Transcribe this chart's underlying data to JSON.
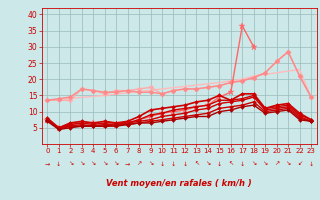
{
  "x": [
    0,
    1,
    2,
    3,
    4,
    5,
    6,
    7,
    8,
    9,
    10,
    11,
    12,
    13,
    14,
    15,
    16,
    17,
    18,
    19,
    20,
    21,
    22,
    23
  ],
  "series": [
    {
      "comment": "lightest pink - smooth linear trend line (no markers)",
      "y": [
        13.5,
        13.8,
        14.1,
        14.4,
        14.7,
        15.0,
        15.4,
        15.8,
        16.2,
        16.6,
        17.0,
        17.4,
        17.8,
        18.2,
        18.6,
        19.0,
        19.5,
        20.0,
        21.0,
        21.5,
        22.0,
        22.5,
        23.0,
        14.5
      ],
      "color": "#ffbbbb",
      "lw": 1.0,
      "marker": null,
      "ms": 0
    },
    {
      "comment": "light pink with diamond markers - irregular shape",
      "y": [
        13.5,
        13.5,
        13.5,
        17.0,
        16.5,
        15.5,
        16.5,
        16.5,
        17.0,
        17.5,
        15.5,
        16.5,
        17.0,
        17.0,
        17.5,
        18.0,
        19.0,
        19.5,
        20.5,
        22.0,
        25.5,
        28.5,
        21.0,
        14.5
      ],
      "color": "#ffaaaa",
      "lw": 1.0,
      "marker": "D",
      "ms": 2.5
    },
    {
      "comment": "medium pink with diamond markers",
      "y": [
        13.5,
        14.0,
        14.5,
        17.0,
        16.5,
        16.0,
        16.0,
        16.5,
        16.0,
        16.0,
        15.5,
        16.5,
        17.0,
        17.0,
        17.5,
        18.0,
        19.0,
        19.5,
        20.5,
        22.0,
        25.5,
        28.5,
        21.0,
        14.5
      ],
      "color": "#ff8888",
      "lw": 1.0,
      "marker": "D",
      "ms": 2.5
    },
    {
      "comment": "star marker line - peaks at 17=36.5",
      "y": [
        7.5,
        5.0,
        6.0,
        6.5,
        6.5,
        6.0,
        6.0,
        6.5,
        7.5,
        8.5,
        9.5,
        10.0,
        10.5,
        11.5,
        12.0,
        14.5,
        16.0,
        36.5,
        30.0,
        null,
        null,
        null,
        null,
        null
      ],
      "color": "#ff6666",
      "lw": 1.0,
      "marker": "*",
      "ms": 4.5
    },
    {
      "comment": "dark red top line with small markers",
      "y": [
        8.0,
        5.0,
        6.5,
        7.0,
        6.5,
        7.0,
        6.5,
        7.0,
        8.5,
        10.5,
        11.0,
        11.5,
        12.0,
        13.0,
        13.5,
        15.0,
        13.5,
        15.5,
        15.5,
        11.0,
        12.0,
        12.5,
        9.5,
        7.5
      ],
      "color": "#cc0000",
      "lw": 1.2,
      "marker": "D",
      "ms": 2.0
    },
    {
      "comment": "dark red line 2",
      "y": [
        7.5,
        5.0,
        6.0,
        6.5,
        6.0,
        6.5,
        6.5,
        6.5,
        7.5,
        9.0,
        9.5,
        10.5,
        11.0,
        11.5,
        12.0,
        13.5,
        13.5,
        14.0,
        15.0,
        11.0,
        11.5,
        12.0,
        9.0,
        7.5
      ],
      "color": "#cc0000",
      "lw": 1.0,
      "marker": "D",
      "ms": 2.0
    },
    {
      "comment": "dark red line 3",
      "y": [
        7.5,
        5.0,
        5.5,
        6.0,
        5.5,
        6.0,
        6.0,
        6.5,
        7.0,
        7.5,
        8.5,
        9.0,
        9.5,
        10.5,
        11.0,
        12.5,
        13.0,
        13.5,
        14.5,
        10.5,
        11.0,
        11.5,
        8.5,
        7.0
      ],
      "color": "#cc0000",
      "lw": 1.0,
      "marker": "D",
      "ms": 2.0
    },
    {
      "comment": "dark red line 4",
      "y": [
        7.5,
        4.5,
        5.5,
        5.5,
        5.5,
        5.5,
        6.0,
        6.0,
        6.5,
        7.0,
        7.5,
        8.0,
        8.5,
        9.0,
        9.5,
        11.0,
        11.5,
        12.0,
        13.0,
        10.0,
        10.5,
        11.0,
        8.0,
        7.0
      ],
      "color": "#cc0000",
      "lw": 1.0,
      "marker": "D",
      "ms": 2.0
    },
    {
      "comment": "dark red line 5 - lowest",
      "y": [
        7.0,
        4.5,
        5.0,
        5.5,
        5.5,
        5.5,
        5.5,
        6.0,
        6.5,
        6.5,
        7.0,
        7.5,
        8.0,
        8.5,
        8.5,
        10.0,
        10.5,
        11.5,
        12.0,
        9.5,
        10.0,
        10.5,
        7.5,
        7.0
      ],
      "color": "#aa0000",
      "lw": 1.0,
      "marker": "D",
      "ms": 2.0
    }
  ],
  "wind_arrows": [
    "→",
    "↓",
    "↘",
    "↘",
    "↘",
    "↘",
    "↘",
    "→",
    "↗",
    "↘",
    "↓",
    "↓",
    "↓",
    "↖",
    "↘",
    "↓",
    "↖",
    "↓",
    "↘",
    "↘",
    "↗",
    "↘",
    "↙",
    "↓"
  ],
  "xlabel": "Vent moyen/en rafales ( km/h )",
  "ylim": [
    0,
    42
  ],
  "xlim": [
    -0.5,
    23.5
  ],
  "yticks": [
    5,
    10,
    15,
    20,
    25,
    30,
    35,
    40
  ],
  "xticks": [
    0,
    1,
    2,
    3,
    4,
    5,
    6,
    7,
    8,
    9,
    10,
    11,
    12,
    13,
    14,
    15,
    16,
    17,
    18,
    19,
    20,
    21,
    22,
    23
  ],
  "bg_color": "#cce8e8",
  "grid_color": "#99bbbb",
  "text_color": "#cc0000",
  "xlabel_color": "#cc0000"
}
